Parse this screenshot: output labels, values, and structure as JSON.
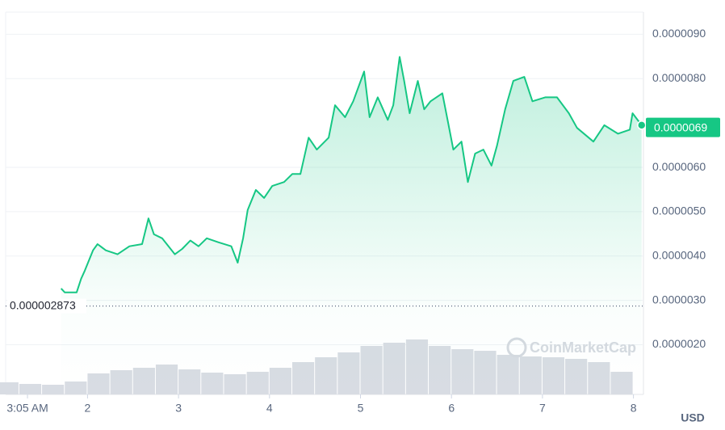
{
  "chart_data": {
    "type": "line",
    "color": "#16c784",
    "x": [
      1.71,
      1.75,
      1.88,
      1.93,
      1.97,
      2.06,
      2.11,
      2.2,
      2.33,
      2.46,
      2.6,
      2.67,
      2.73,
      2.82,
      2.96,
      3.04,
      3.13,
      3.22,
      3.31,
      3.44,
      3.58,
      3.65,
      3.71,
      3.76,
      3.85,
      3.94,
      4.03,
      4.16,
      4.25,
      4.34,
      4.43,
      4.52,
      4.65,
      4.72,
      4.83,
      4.92,
      5.04,
      5.1,
      5.19,
      5.3,
      5.36,
      5.43,
      5.48,
      5.54,
      5.63,
      5.7,
      5.77,
      5.9,
      5.96,
      6.02,
      6.11,
      6.18,
      6.26,
      6.35,
      6.44,
      6.5,
      6.59,
      6.68,
      6.8,
      6.89,
      7.03,
      7.16,
      7.29,
      7.38,
      7.56,
      7.68,
      7.83,
      7.96,
      7.99,
      8.09
    ],
    "values": [
      3.27e-06,
      3.18e-06,
      3.18e-06,
      3.49e-06,
      3.67e-06,
      4.13e-06,
      4.27e-06,
      4.13e-06,
      4.04e-06,
      4.22e-06,
      4.27e-06,
      4.85e-06,
      4.49e-06,
      4.4e-06,
      4.04e-06,
      4.16e-06,
      4.35e-06,
      4.22e-06,
      4.4e-06,
      4.31e-06,
      4.22e-06,
      3.85e-06,
      4.4e-06,
      5.04e-06,
      5.49e-06,
      5.31e-06,
      5.58e-06,
      5.67e-06,
      5.85e-06,
      5.85e-06,
      6.67e-06,
      6.4e-06,
      6.67e-06,
      7.4e-06,
      7.13e-06,
      7.49e-06,
      8.16e-06,
      7.13e-06,
      7.58e-06,
      7.07e-06,
      7.4e-06,
      8.49e-06,
      7.95e-06,
      7.22e-06,
      7.95e-06,
      7.31e-06,
      7.49e-06,
      7.67e-06,
      7.04e-06,
      6.4e-06,
      6.58e-06,
      5.67e-06,
      6.31e-06,
      6.4e-06,
      6.04e-06,
      6.49e-06,
      7.31e-06,
      7.95e-06,
      8.04e-06,
      7.49e-06,
      7.58e-06,
      7.58e-06,
      7.22e-06,
      6.89e-06,
      6.58e-06,
      6.95e-06,
      6.76e-06,
      6.85e-06,
      7.22e-06,
      6.95e-06
    ],
    "ylim": [
      8.8e-07,
      9.5e-06
    ],
    "yticks": [
      {
        "value": 2e-06,
        "label": "0.0000020"
      },
      {
        "value": 3e-06,
        "label": "0.0000030"
      },
      {
        "value": 4e-06,
        "label": "0.0000040"
      },
      {
        "value": 5e-06,
        "label": "0.0000050"
      },
      {
        "value": 6e-06,
        "label": "0.0000060"
      },
      {
        "value": 8e-06,
        "label": "0.0000080"
      },
      {
        "value": 9e-06,
        "label": "0.0000090"
      }
    ],
    "xlim": [
      1.1,
      8.11
    ],
    "xticks": [
      {
        "value": 1.34,
        "label": "3:05 AM"
      },
      2,
      3,
      4,
      5,
      6,
      7,
      8
    ],
    "grid": true,
    "baseline": {
      "value": 2.873e-06,
      "label": "0.000002873"
    },
    "last_price": {
      "value": 6.9e-06,
      "label": "0.0000069"
    },
    "currency": "USD",
    "watermark": "CoinMarketCap",
    "volume": {
      "color": "#d8dce3",
      "vlim": [
        0,
        100
      ],
      "x": [
        1.125,
        1.375,
        1.625,
        1.875,
        2.125,
        2.375,
        2.625,
        2.875,
        3.125,
        3.375,
        3.625,
        3.875,
        4.125,
        4.375,
        4.625,
        4.875,
        5.125,
        5.375,
        5.625,
        5.875,
        6.125,
        6.375,
        6.625,
        6.875,
        7.125,
        7.375,
        7.625,
        7.875
      ],
      "values": [
        15,
        13,
        12,
        16,
        26,
        30,
        33,
        37,
        31,
        27,
        25,
        28,
        33,
        40,
        46,
        52,
        60,
        64,
        68,
        60,
        56,
        54,
        49,
        47,
        46,
        44,
        40,
        28
      ]
    }
  }
}
